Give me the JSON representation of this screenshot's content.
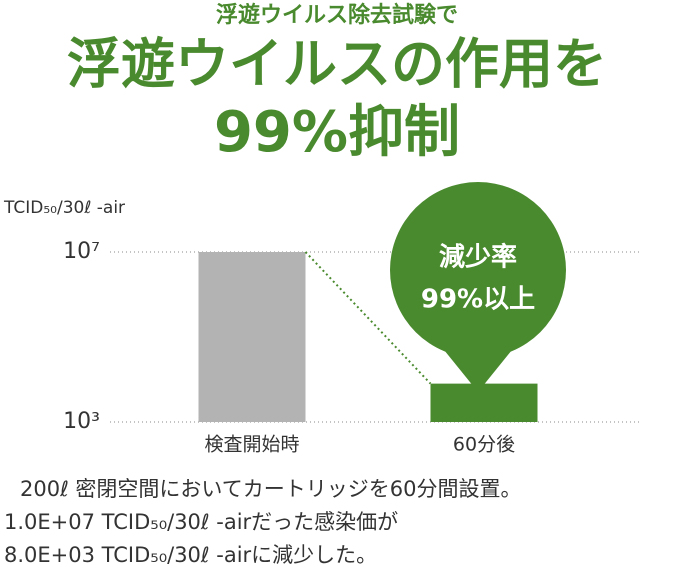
{
  "header": {
    "subtitle": "浮遊ウイルス除去試験で",
    "title_lines": [
      "浮遊ウイルスの作用を",
      "99%抑制"
    ]
  },
  "chart_data": {
    "type": "bar",
    "y_label": "TCID₅₀/30ℓ -air",
    "categories": [
      "検査開始時",
      "60分後"
    ],
    "values": [
      10000000,
      8000
    ],
    "colors": [
      "#b3b3b3",
      "#4a8a2e"
    ],
    "ylim": [
      1000,
      10000000
    ],
    "yticks": [
      {
        "value": 1000,
        "label": "10³"
      },
      {
        "value": 10000000,
        "label": "10⁷"
      }
    ],
    "log_scale": true,
    "grid": true,
    "annotation": [
      "減少率",
      "99%以上"
    ]
  },
  "footer": [
    "200ℓ 密閉空間においてカートリッジを60分間設置。",
    "1.0E+07 TCID₅₀/30ℓ -airだった感染価が",
    "8.0E+03 TCID₅₀/30ℓ -airに減少した。"
  ]
}
